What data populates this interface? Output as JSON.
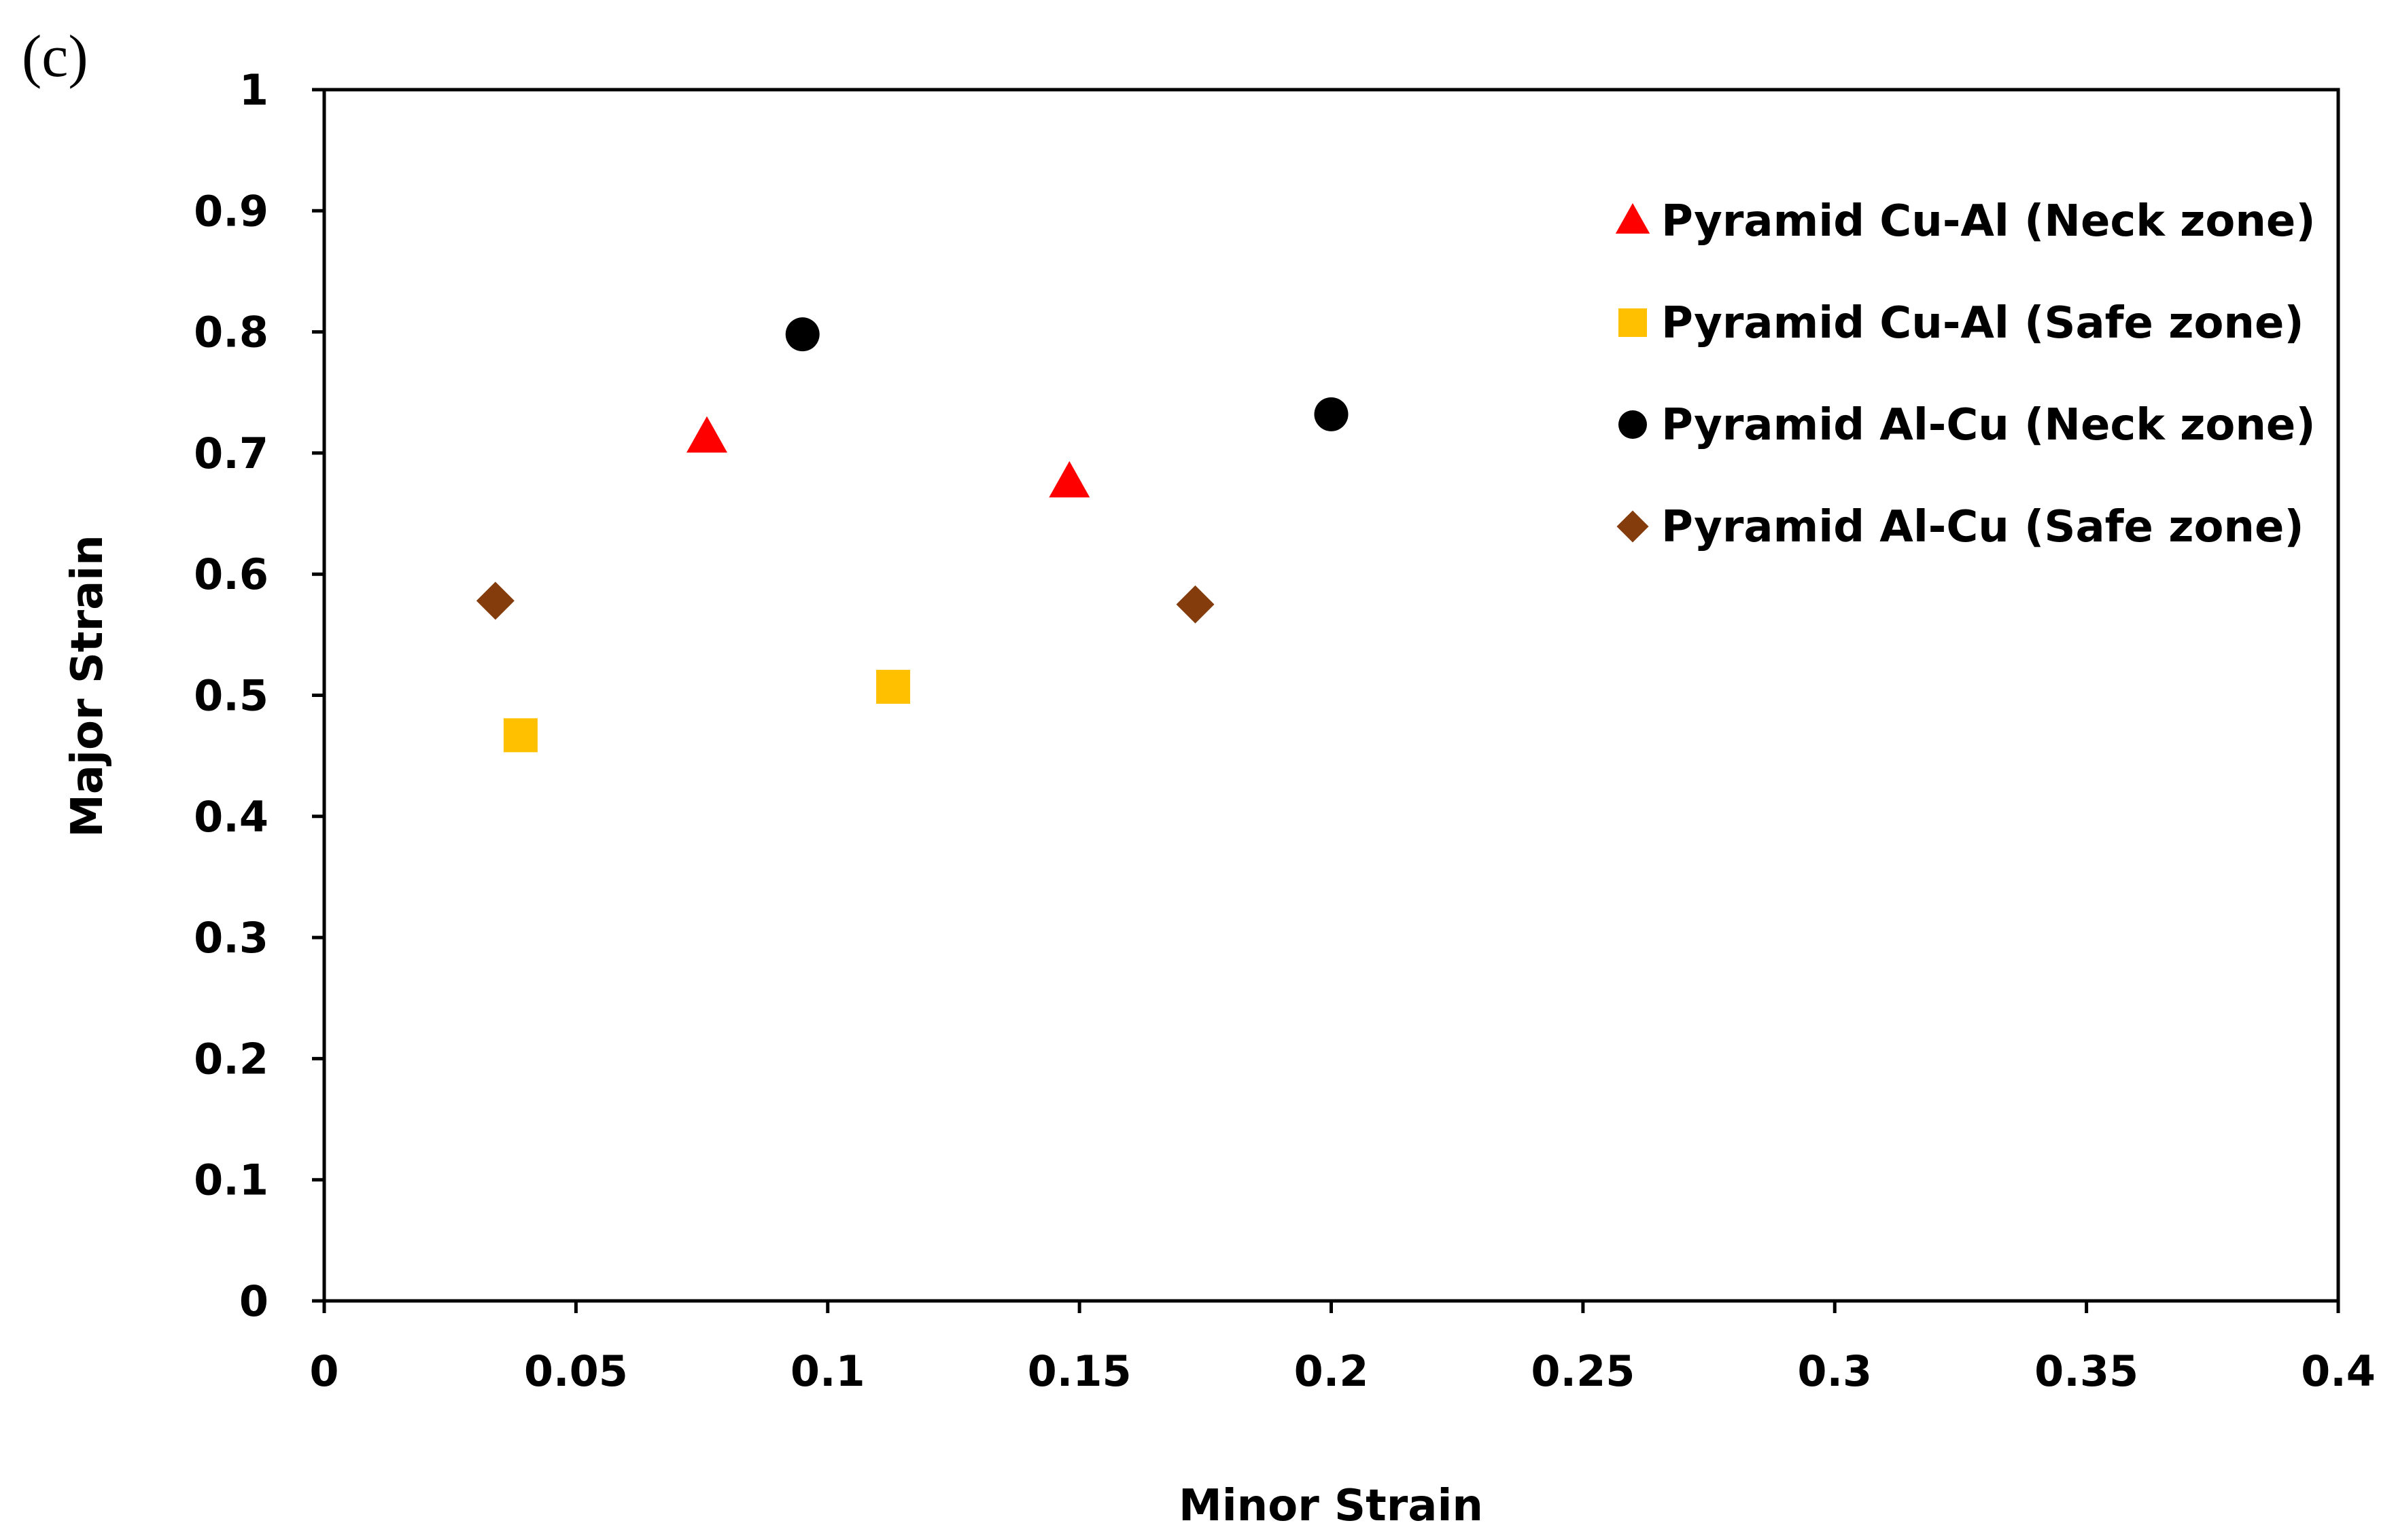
{
  "panel_label": "(c)",
  "chart_data": {
    "type": "scatter",
    "title": "",
    "xlabel": "Minor Strain",
    "ylabel": "Major Strain",
    "xlim": [
      0,
      0.4
    ],
    "ylim": [
      0,
      1
    ],
    "xticks": [
      0,
      0.05,
      0.1,
      0.15,
      0.2,
      0.25,
      0.3,
      0.35,
      0.4
    ],
    "yticks": [
      0,
      0.1,
      0.2,
      0.3,
      0.4,
      0.5,
      0.6,
      0.7,
      0.8,
      0.9,
      1
    ],
    "xtick_labels": [
      "0",
      "0.05",
      "0.1",
      "0.15",
      "0.2",
      "0.25",
      "0.3",
      "0.35",
      "0.4"
    ],
    "ytick_labels": [
      "0",
      "0.1",
      "0.2",
      "0.3",
      "0.4",
      "0.5",
      "0.6",
      "0.7",
      "0.8",
      "0.9",
      "1"
    ],
    "grid": false,
    "legend_position": "top-right",
    "series": [
      {
        "name": "Pyramid Cu-Al (Neck zone)",
        "marker": "triangle",
        "color": "#ff0000",
        "points": [
          [
            0.076,
            0.713
          ],
          [
            0.148,
            0.676
          ]
        ]
      },
      {
        "name": "Pyramid Cu-Al (Safe zone)",
        "marker": "square",
        "color": "#ffc000",
        "points": [
          [
            0.039,
            0.467
          ],
          [
            0.113,
            0.507
          ]
        ]
      },
      {
        "name": "Pyramid Al-Cu (Neck zone)",
        "marker": "circle",
        "color": "#000000",
        "points": [
          [
            0.095,
            0.798
          ],
          [
            0.2,
            0.732
          ]
        ]
      },
      {
        "name": "Pyramid Al-Cu (Safe zone)",
        "marker": "diamond",
        "color": "#843c0c",
        "points": [
          [
            0.034,
            0.578
          ],
          [
            0.173,
            0.575
          ]
        ]
      }
    ]
  }
}
